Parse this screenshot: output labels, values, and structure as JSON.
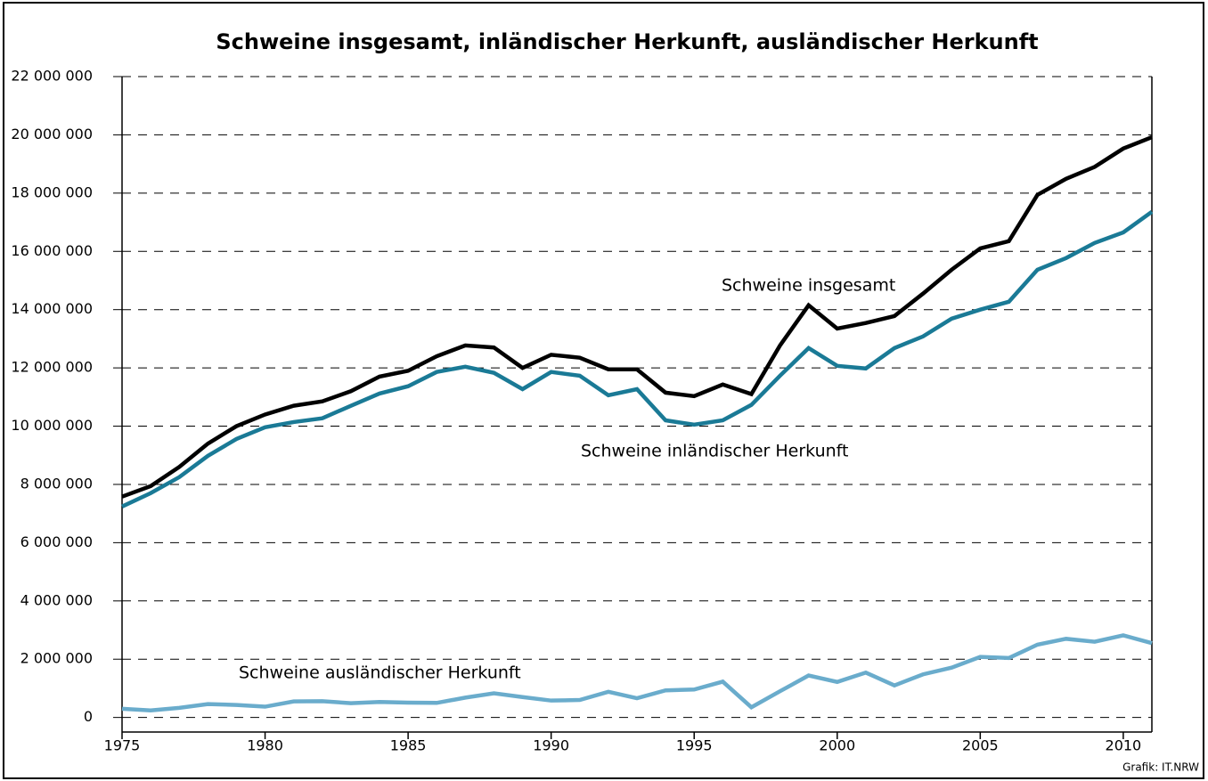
{
  "chart_data": {
    "type": "line",
    "title": "Schweine insgesamt, inländischer Herkunft, ausländischer Herkunft",
    "credit": "Grafik: IT.NRW",
    "x": [
      1975,
      1976,
      1977,
      1978,
      1979,
      1980,
      1981,
      1982,
      1983,
      1984,
      1985,
      1986,
      1987,
      1988,
      1989,
      1990,
      1991,
      1992,
      1993,
      1994,
      1995,
      1996,
      1997,
      1998,
      1999,
      2000,
      2001,
      2002,
      2003,
      2004,
      2005,
      2006,
      2007,
      2008,
      2009,
      2010,
      2011
    ],
    "xlim": [
      1975,
      2011
    ],
    "xticks": [
      1975,
      1980,
      1985,
      1990,
      1995,
      2000,
      2005,
      2010
    ],
    "ylim": [
      -500000,
      22000000
    ],
    "yticks": [
      0,
      {
        "value": 2000000,
        "label": "2 000 000"
      },
      {
        "value": 4000000,
        "label": "4 000 000"
      },
      {
        "value": 6000000,
        "label": "6 000 000"
      },
      {
        "value": 8000000,
        "label": "8 000 000"
      },
      {
        "value": 10000000,
        "label": "10 000 000"
      },
      {
        "value": 12000000,
        "label": "12 000 000"
      },
      {
        "value": 14000000,
        "label": "14 000 000"
      },
      {
        "value": 16000000,
        "label": "16 000 000"
      },
      {
        "value": 18000000,
        "label": "18 000 000"
      },
      {
        "value": 20000000,
        "label": "20 000 000"
      },
      {
        "value": 22000000,
        "label": "22 000 000"
      }
    ],
    "grid": true,
    "series": [
      {
        "name": "Schweine insgesamt",
        "color": "#000000",
        "values": [
          7580000,
          7940000,
          8600000,
          9400000,
          10000000,
          10400000,
          10700000,
          10850000,
          11200000,
          11700000,
          11900000,
          12400000,
          12770000,
          12700000,
          12000000,
          12450000,
          12350000,
          11950000,
          11950000,
          11150000,
          11030000,
          11430000,
          11100000,
          12770000,
          14150000,
          13350000,
          13540000,
          13780000,
          14550000,
          15370000,
          16100000,
          16350000,
          17940000,
          18490000,
          18900000,
          19530000,
          19920000
        ]
      },
      {
        "name": "Schweine inländischer Herkunft",
        "color": "#1a7a96",
        "values": [
          7240000,
          7700000,
          8250000,
          8980000,
          9560000,
          9960000,
          10140000,
          10270000,
          10700000,
          11120000,
          11370000,
          11860000,
          12040000,
          11830000,
          11270000,
          11860000,
          11730000,
          11060000,
          11270000,
          10200000,
          10050000,
          10200000,
          10730000,
          11730000,
          12680000,
          12070000,
          11980000,
          12680000,
          13080000,
          13690000,
          14000000,
          14270000,
          15370000,
          15770000,
          16290000,
          16650000,
          17360000
        ]
      },
      {
        "name": "Schweine ausländischer Herkunft",
        "color": "#6aaccc",
        "values": [
          300000,
          240000,
          330000,
          460000,
          430000,
          370000,
          550000,
          560000,
          490000,
          530000,
          510000,
          500000,
          680000,
          830000,
          700000,
          580000,
          600000,
          880000,
          660000,
          930000,
          960000,
          1230000,
          350000,
          900000,
          1440000,
          1220000,
          1540000,
          1100000,
          1480000,
          1710000,
          2080000,
          2040000,
          2500000,
          2700000,
          2600000,
          2820000,
          2550000
        ]
      }
    ]
  }
}
